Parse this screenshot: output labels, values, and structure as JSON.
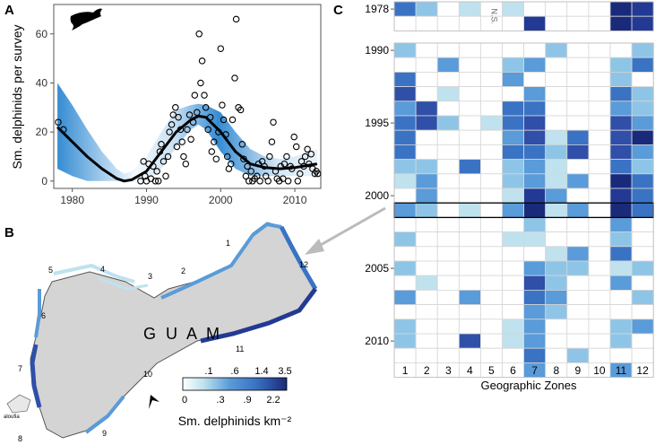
{
  "panels": {
    "a": "A",
    "b": "B",
    "c": "C"
  },
  "chart_data": [
    {
      "type": "scatter",
      "title": "",
      "xlabel": "",
      "ylabel": "Sm. delphinids per survey",
      "xlim": [
        1977.5,
        2013.5
      ],
      "ylim": [
        -3,
        72
      ],
      "xticks": [
        "1980",
        "1990",
        "2000",
        "2010"
      ],
      "yticks": [
        "0",
        "20",
        "40",
        "60"
      ],
      "points": [
        [
          1978.1,
          24
        ],
        [
          1978.8,
          21
        ],
        [
          1989.2,
          0
        ],
        [
          1989.6,
          8
        ],
        [
          1989.8,
          2
        ],
        [
          1990.0,
          0
        ],
        [
          1990.3,
          7
        ],
        [
          1990.6,
          1
        ],
        [
          1990.9,
          6
        ],
        [
          1991.2,
          0
        ],
        [
          1991.4,
          4
        ],
        [
          1991.6,
          0
        ],
        [
          1991.8,
          12
        ],
        [
          1992.0,
          15
        ],
        [
          1992.3,
          8
        ],
        [
          1992.6,
          2
        ],
        [
          1992.9,
          10
        ],
        [
          1993.1,
          20
        ],
        [
          1993.4,
          23
        ],
        [
          1993.6,
          27
        ],
        [
          1993.9,
          30
        ],
        [
          1994.1,
          14
        ],
        [
          1994.3,
          26
        ],
        [
          1994.6,
          21
        ],
        [
          1994.8,
          16
        ],
        [
          1995.0,
          10
        ],
        [
          1995.3,
          7
        ],
        [
          1995.5,
          21
        ],
        [
          1995.8,
          27
        ],
        [
          1996.0,
          17
        ],
        [
          1996.3,
          24
        ],
        [
          1996.5,
          35
        ],
        [
          1996.8,
          28
        ],
        [
          1997.1,
          60
        ],
        [
          1997.3,
          40
        ],
        [
          1997.5,
          49
        ],
        [
          1997.8,
          35
        ],
        [
          1998.0,
          30
        ],
        [
          1998.3,
          21
        ],
        [
          1998.6,
          26
        ],
        [
          1998.8,
          12
        ],
        [
          1999.1,
          16
        ],
        [
          1999.4,
          9
        ],
        [
          1999.7,
          20
        ],
        [
          2000.0,
          54
        ],
        [
          2000.2,
          31
        ],
        [
          2000.4,
          25
        ],
        [
          2000.7,
          19
        ],
        [
          2000.9,
          10
        ],
        [
          2001.1,
          5
        ],
        [
          2001.4,
          7
        ],
        [
          2001.6,
          25
        ],
        [
          2001.9,
          42
        ],
        [
          2002.1,
          66
        ],
        [
          2002.4,
          30
        ],
        [
          2002.7,
          29
        ],
        [
          2002.9,
          15
        ],
        [
          2003.1,
          9
        ],
        [
          2003.4,
          2
        ],
        [
          2003.6,
          6
        ],
        [
          2003.8,
          0
        ],
        [
          2004.1,
          4
        ],
        [
          2004.3,
          0
        ],
        [
          2004.6,
          1
        ],
        [
          2004.9,
          2
        ],
        [
          2005.1,
          7
        ],
        [
          2005.3,
          0
        ],
        [
          2005.6,
          8
        ],
        [
          2005.9,
          6
        ],
        [
          2006.1,
          2
        ],
        [
          2006.4,
          0
        ],
        [
          2006.6,
          10
        ],
        [
          2006.9,
          16
        ],
        [
          2007.1,
          24
        ],
        [
          2007.4,
          4
        ],
        [
          2007.6,
          1
        ],
        [
          2007.9,
          0
        ],
        [
          2008.1,
          6
        ],
        [
          2008.4,
          1
        ],
        [
          2008.6,
          7
        ],
        [
          2008.9,
          10
        ],
        [
          2009.1,
          0
        ],
        [
          2009.4,
          6
        ],
        [
          2009.6,
          5
        ],
        [
          2009.9,
          18
        ],
        [
          2010.2,
          14
        ],
        [
          2010.4,
          0
        ],
        [
          2010.7,
          3
        ],
        [
          2010.9,
          8
        ],
        [
          2011.2,
          6
        ],
        [
          2011.4,
          10
        ],
        [
          2011.7,
          13
        ],
        [
          2011.9,
          7
        ],
        [
          2012.2,
          11
        ],
        [
          2012.4,
          5
        ],
        [
          2012.7,
          3
        ],
        [
          2012.9,
          4
        ],
        [
          2013.1,
          3
        ]
      ],
      "trend": {
        "x": [
          1978,
          1980,
          1982,
          1984,
          1986,
          1987,
          1988,
          1990,
          1992,
          1994,
          1996,
          1997,
          1998,
          2000,
          2002,
          2004,
          2006,
          2008,
          2010,
          2012,
          2013
        ],
        "y": [
          22,
          16,
          10,
          5,
          1,
          0,
          0.5,
          4,
          12,
          20,
          25,
          26.5,
          26,
          20,
          12,
          7,
          5.5,
          5,
          5.5,
          6.5,
          7
        ],
        "lower": [
          5,
          2,
          0,
          0,
          0,
          0,
          0,
          0,
          5,
          14,
          21,
          23,
          21,
          12,
          5,
          2,
          2,
          2,
          2,
          2,
          2
        ],
        "upper": [
          40,
          31,
          21,
          12,
          5,
          3,
          4,
          10,
          20,
          29,
          31,
          31.5,
          31,
          28,
          20,
          13,
          10,
          9,
          10,
          12,
          13
        ]
      }
    },
    {
      "type": "heatmap",
      "xlabel": "Geographic Zones",
      "categories": [
        "1",
        "2",
        "3",
        "4",
        "5",
        "6",
        "7",
        "8",
        "9",
        "10",
        "11",
        "12"
      ],
      "row_labels": [
        "1978",
        "1990",
        "1995",
        "2000",
        "2005",
        "2010"
      ],
      "annotation": "N.S.",
      "colorbar": {
        "title": "Sm. delphinids km⁻²",
        "ticks_top": [
          ".1",
          ".6",
          "1.4",
          "3.5"
        ],
        "ticks_bottom": [
          "0",
          ".3",
          ".9",
          "2.2"
        ]
      },
      "rows": [
        {
          "year": 1978,
          "values": [
            4,
            2,
            0,
            1,
            -1,
            1,
            0,
            0,
            0,
            0,
            7,
            6
          ]
        },
        {
          "year": 1978.5,
          "values": [
            0,
            0,
            0,
            0,
            -1,
            0,
            6,
            0,
            0,
            0,
            7,
            6
          ]
        },
        {
          "year": 1990,
          "values": [
            2,
            0,
            0,
            0,
            0,
            0,
            0,
            2,
            0,
            0,
            0,
            2
          ]
        },
        {
          "year": 1991,
          "values": [
            0,
            0,
            3,
            0,
            0,
            2,
            3,
            0,
            0,
            0,
            2,
            4
          ]
        },
        {
          "year": 1992,
          "values": [
            4,
            0,
            0,
            0,
            0,
            3,
            0,
            0,
            0,
            0,
            2,
            0
          ]
        },
        {
          "year": 1993,
          "values": [
            5,
            0,
            1,
            0,
            0,
            0,
            3,
            0,
            0,
            0,
            4,
            2
          ]
        },
        {
          "year": 1994,
          "values": [
            3,
            5,
            0,
            0,
            0,
            4,
            4,
            0,
            0,
            0,
            3,
            2
          ]
        },
        {
          "year": 1995,
          "values": [
            4,
            5,
            2,
            0,
            1,
            4,
            5,
            0,
            0,
            0,
            5,
            3
          ]
        },
        {
          "year": 1996,
          "values": [
            4,
            0,
            0,
            0,
            0,
            3,
            5,
            1,
            4,
            0,
            5,
            7
          ]
        },
        {
          "year": 1997,
          "values": [
            4,
            0,
            0,
            0,
            0,
            4,
            4,
            2,
            5,
            0,
            5,
            3
          ]
        },
        {
          "year": 1998,
          "values": [
            2,
            2,
            0,
            4,
            0,
            2,
            3,
            1,
            0,
            0,
            4,
            2
          ]
        },
        {
          "year": 1999,
          "values": [
            1,
            3,
            0,
            0,
            0,
            2,
            3,
            1,
            3,
            0,
            7,
            4
          ]
        },
        {
          "year": 2000,
          "values": [
            0,
            3,
            0,
            0,
            0,
            1,
            6,
            3,
            0,
            0,
            6,
            4
          ]
        },
        {
          "year": 2001,
          "values": [
            3,
            2,
            0,
            1,
            0,
            3,
            7,
            1,
            3,
            0,
            7,
            4
          ]
        },
        {
          "year": 2002,
          "values": [
            0,
            0,
            0,
            0,
            0,
            0,
            2,
            0,
            0,
            0,
            3,
            0
          ]
        },
        {
          "year": 2003,
          "values": [
            2,
            0,
            0,
            0,
            0,
            1,
            1,
            0,
            0,
            0,
            2,
            0
          ]
        },
        {
          "year": 2004,
          "values": [
            0,
            0,
            0,
            0,
            0,
            0,
            0,
            1,
            3,
            0,
            4,
            0
          ]
        },
        {
          "year": 2005,
          "values": [
            2,
            0,
            0,
            0,
            0,
            0,
            3,
            2,
            2,
            0,
            1,
            2
          ]
        },
        {
          "year": 2006,
          "values": [
            0,
            1,
            0,
            0,
            0,
            0,
            5,
            2,
            0,
            0,
            3,
            0
          ]
        },
        {
          "year": 2007,
          "values": [
            3,
            0,
            0,
            3,
            0,
            0,
            4,
            3,
            0,
            0,
            0,
            2
          ]
        },
        {
          "year": 2008,
          "values": [
            0,
            0,
            0,
            0,
            0,
            0,
            3,
            2,
            0,
            0,
            0,
            0
          ]
        },
        {
          "year": 2009,
          "values": [
            2,
            0,
            0,
            0,
            0,
            1,
            3,
            0,
            0,
            0,
            2,
            3
          ]
        },
        {
          "year": 2010,
          "values": [
            2,
            0,
            0,
            5,
            0,
            1,
            3,
            0,
            0,
            0,
            2,
            0
          ]
        },
        {
          "year": 2011,
          "values": [
            0,
            0,
            0,
            0,
            0,
            0,
            4,
            0,
            2,
            0,
            0,
            0
          ]
        },
        {
          "year": 2012,
          "values": [
            0,
            0,
            0,
            0,
            0,
            0,
            3,
            0,
            0,
            0,
            3,
            0
          ]
        }
      ]
    }
  ],
  "colors": {
    "scale": [
      "#ffffff",
      "#bfe2ee",
      "#8ec5e6",
      "#5a9bd9",
      "#3a73c4",
      "#2f4fa8",
      "#233a94",
      "#1a2a7a"
    ],
    "trend": "#000000",
    "ci": "#2a86d1"
  },
  "map": {
    "title": "G U A M",
    "zones": [
      "1",
      "2",
      "3",
      "4",
      "5",
      "6",
      "7",
      "8",
      "9",
      "10",
      "11",
      "12"
    ],
    "inset_label": "aloufia"
  }
}
